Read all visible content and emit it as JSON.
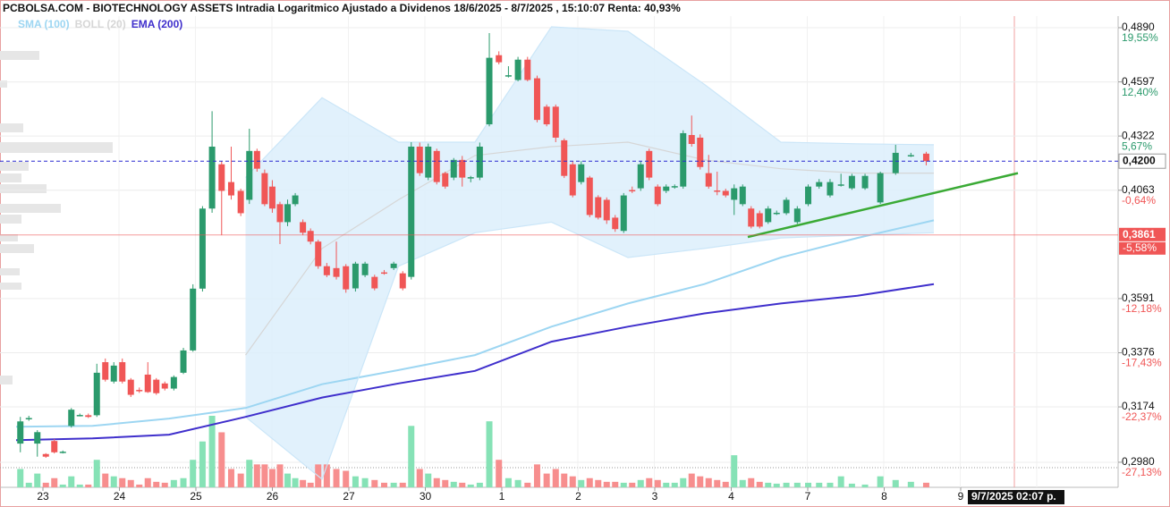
{
  "chart_data": {
    "type": "candlestick",
    "title": "PCBOLSA.COM - BIOTECHNOLOGY ASSETS Intradia Logaritmico Ajustado a Dividenos 18/6/2025 - 8/7/2025 , 15:10:07 Renta: 40,93%",
    "log_scale": true,
    "grid": true,
    "ylim": [
      0.2896,
      0.4955
    ],
    "yticks": [
      {
        "value": 0.489,
        "label": "0,4890"
      },
      {
        "value": 0.4597,
        "label": "0,4597"
      },
      {
        "value": 0.4322,
        "label": "0,4322"
      },
      {
        "value": 0.4063,
        "label": "0,4063"
      },
      {
        "value": 0.3591,
        "label": "0,3591"
      },
      {
        "value": 0.3376,
        "label": "0,3376"
      },
      {
        "value": 0.3174,
        "label": "0,3174"
      },
      {
        "value": 0.298,
        "label": "0,2980"
      }
    ],
    "ytick_changes": [
      {
        "value": 19.55,
        "label": "19,55%"
      },
      {
        "value": 12.4,
        "label": "12,40%"
      },
      {
        "value": 5.67,
        "label": "5,67%"
      },
      {
        "value": -0.64,
        "label": "-0,64%"
      },
      {
        "value": -12.18,
        "label": "-12,18%"
      },
      {
        "value": -17.43,
        "label": "-17,43%"
      },
      {
        "value": -22.37,
        "label": "-22,37%"
      },
      {
        "value": -27.13,
        "label": "-27,13%"
      }
    ],
    "up_color": "#2b9a6c",
    "down_color": "#f05656",
    "up_volume_color": "#86e2b6",
    "down_volume_color": "#f78e8e",
    "days": [
      {
        "label": "23",
        "candles": [
          [
            0.3044,
            0.3138,
            0.3014,
            0.3122
          ],
          [
            0.313,
            0.3142,
            0.3124,
            0.3134
          ],
          [
            0.3044,
            0.3091,
            0.2999,
            0.3084
          ],
          [
            0.3008,
            0.3011,
            0.2995,
            0.2999
          ],
          [
            0.3053,
            0.306,
            0.301,
            0.3014
          ],
          [
            0.3014,
            0.302,
            0.301,
            0.3016
          ],
          [
            0.3106,
            0.317,
            0.31,
            0.3164
          ],
          [
            0.3144,
            0.315,
            0.314,
            0.3145
          ],
          [
            0.3144,
            0.315,
            0.3134,
            0.3138
          ]
        ],
        "volumes": [
          20,
          5,
          15,
          5,
          10,
          3,
          12,
          3,
          3
        ]
      },
      {
        "label": "24",
        "candles": [
          [
            0.3144,
            0.3334,
            0.3138,
            0.33
          ],
          [
            0.334,
            0.3354,
            0.3267,
            0.3274
          ],
          [
            0.3267,
            0.334,
            0.326,
            0.3327
          ],
          [
            0.334,
            0.3354,
            0.326,
            0.3267
          ],
          [
            0.3274,
            0.328,
            0.321,
            0.3218
          ],
          [
            0.3236,
            0.3245,
            0.3225,
            0.3234
          ],
          [
            0.3293,
            0.334,
            0.3225,
            0.3228
          ],
          [
            0.3274,
            0.328,
            0.3218,
            0.3224
          ],
          [
            0.326,
            0.3267,
            0.3234,
            0.3241
          ]
        ],
        "volumes": [
          30,
          15,
          12,
          10,
          8,
          3,
          10,
          6,
          5
        ]
      },
      {
        "label": "25",
        "candles": [
          [
            0.3241,
            0.329,
            0.3234,
            0.3284
          ],
          [
            0.33,
            0.3395,
            0.3295,
            0.3385
          ],
          [
            0.3385,
            0.365,
            0.338,
            0.3632
          ],
          [
            0.3632,
            0.399,
            0.362,
            0.3979
          ],
          [
            0.3979,
            0.4446,
            0.396,
            0.427
          ],
          [
            0.4185,
            0.42,
            0.386,
            0.406
          ],
          [
            0.4101,
            0.427,
            0.402,
            0.4039
          ],
          [
            0.406,
            0.407,
            0.3945,
            0.3958
          ]
        ],
        "volumes": [
          8,
          10,
          30,
          50,
          78,
          60,
          20,
          15
        ]
      },
      {
        "label": "26",
        "candles": [
          [
            0.4019,
            0.4358,
            0.4,
            0.4249
          ],
          [
            0.4249,
            0.426,
            0.415,
            0.4164
          ],
          [
            0.4143,
            0.416,
            0.399,
            0.3999
          ],
          [
            0.408,
            0.411,
            0.396,
            0.3979
          ],
          [
            0.3999,
            0.401,
            0.3821,
            0.3918
          ],
          [
            0.3918,
            0.402,
            0.39,
            0.3999
          ],
          [
            0.3999,
            0.405,
            0.399,
            0.4039
          ],
          [
            0.3918,
            0.393,
            0.386,
            0.3871
          ],
          [
            0.3879,
            0.389,
            0.382,
            0.3832
          ],
          [
            0.3832,
            0.384,
            0.3715,
            0.3726
          ]
        ],
        "volumes": [
          30,
          25,
          25,
          20,
          25,
          15,
          10,
          8,
          5,
          25
        ]
      },
      {
        "label": "27",
        "candles": [
          [
            0.3726,
            0.374,
            0.368,
            0.3688
          ],
          [
            0.3718,
            0.3832,
            0.367,
            0.3681
          ],
          [
            0.3726,
            0.3735,
            0.3615,
            0.3629
          ],
          [
            0.3633,
            0.3745,
            0.362,
            0.3737
          ],
          [
            0.3688,
            0.3745,
            0.368,
            0.3737
          ],
          [
            0.3681,
            0.369,
            0.3625,
            0.3633
          ],
          [
            0.37,
            0.371,
            0.369,
            0.3699
          ],
          [
            0.3718,
            0.3745,
            0.371,
            0.3737
          ]
        ],
        "volumes": [
          25,
          20,
          18,
          12,
          10,
          8,
          5,
          5
        ]
      },
      {
        "label": "30",
        "candles": [
          [
            0.3696,
            0.3705,
            0.3625,
            0.3633
          ],
          [
            0.3681,
            0.4292,
            0.367,
            0.427
          ],
          [
            0.427,
            0.429,
            0.413,
            0.4143
          ],
          [
            0.4122,
            0.4285,
            0.411,
            0.427
          ],
          [
            0.4249,
            0.426,
            0.409,
            0.4101
          ],
          [
            0.4143,
            0.415,
            0.407,
            0.408
          ],
          [
            0.4122,
            0.4215,
            0.411,
            0.4206
          ],
          [
            0.4206,
            0.4225,
            0.408,
            0.4122
          ],
          [
            0.4122,
            0.413,
            0.41,
            0.4124
          ]
        ],
        "volumes": [
          5,
          67,
          20,
          15,
          10,
          8,
          6,
          5,
          3
        ]
      },
      {
        "label": "1",
        "candles": [
          [
            0.4122,
            0.429,
            0.411,
            0.427
          ],
          [
            0.438,
            0.486,
            0.437,
            0.4725
          ],
          [
            0.4739,
            0.476,
            0.469,
            0.4701
          ],
          [
            0.463,
            0.468,
            0.462,
            0.4632
          ],
          [
            0.4607,
            0.473,
            0.46,
            0.4715
          ],
          [
            0.4715,
            0.473,
            0.46,
            0.4607
          ],
          [
            0.4616,
            0.463,
            0.439,
            0.4402
          ],
          [
            0.4469,
            0.448,
            0.437,
            0.438
          ]
        ],
        "volumes": [
          5,
          72,
          30,
          10,
          8,
          5,
          25,
          15
        ]
      },
      {
        "label": "2",
        "candles": [
          [
            0.4469,
            0.448,
            0.4292,
            0.4314
          ],
          [
            0.4301,
            0.431,
            0.412,
            0.413
          ],
          [
            0.4185,
            0.42,
            0.403,
            0.4039
          ],
          [
            0.4101,
            0.42,
            0.409,
            0.4185
          ],
          [
            0.4122,
            0.413,
            0.394,
            0.395
          ],
          [
            0.4031,
            0.404,
            0.393,
            0.3938
          ],
          [
            0.4019,
            0.403,
            0.391,
            0.3926
          ],
          [
            0.3938,
            0.395,
            0.3875,
            0.3887
          ],
          [
            0.3879,
            0.405,
            0.387,
            0.4039
          ]
        ],
        "volumes": [
          20,
          15,
          12,
          8,
          10,
          8,
          6,
          6,
          5
        ]
      },
      {
        "label": "3",
        "candles": [
          [
            0.4064,
            0.408,
            0.405,
            0.4062
          ],
          [
            0.4072,
            0.42,
            0.406,
            0.4185
          ],
          [
            0.4249,
            0.426,
            0.411,
            0.4122
          ],
          [
            0.408,
            0.409,
            0.399,
            0.3999
          ],
          [
            0.406,
            0.409,
            0.405,
            0.408
          ],
          [
            0.408,
            0.409,
            0.407,
            0.4082
          ],
          [
            0.408,
            0.435,
            0.407,
            0.4336
          ],
          [
            0.4327,
            0.4424,
            0.427,
            0.4283
          ],
          [
            0.4314,
            0.433,
            0.416,
            0.4172
          ]
        ],
        "volumes": [
          5,
          8,
          10,
          8,
          5,
          5,
          10,
          15,
          12
        ]
      },
      {
        "label": "4",
        "candles": [
          [
            0.4143,
            0.423,
            0.407,
            0.408
          ],
          [
            0.4062,
            0.415,
            0.404,
            0.4058
          ],
          [
            0.406,
            0.407,
            0.403,
            0.4039
          ],
          [
            0.4019,
            0.409,
            0.395,
            0.4072
          ],
          [
            0.3999,
            0.409,
            0.399,
            0.408
          ],
          [
            0.3979,
            0.399,
            0.389,
            0.3898
          ],
          [
            0.3958,
            0.397,
            0.389,
            0.3898
          ],
          [
            0.3918,
            0.399,
            0.391,
            0.3979
          ],
          [
            0.3958,
            0.397,
            0.395,
            0.396
          ]
        ],
        "volumes": [
          10,
          8,
          6,
          35,
          8,
          10,
          6,
          5,
          4
        ]
      },
      {
        "label": "7",
        "candles": [
          [
            0.3958,
            0.403,
            0.395,
            0.4019
          ],
          [
            0.3918,
            0.399,
            0.391,
            0.3979
          ],
          [
            0.3999,
            0.409,
            0.399,
            0.408
          ],
          [
            0.408,
            0.4115,
            0.407,
            0.4101
          ],
          [
            0.4039,
            0.4115,
            0.403,
            0.4101
          ],
          [
            0.4088,
            0.414,
            0.408,
            0.409
          ],
          [
            0.4072,
            0.414,
            0.4065,
            0.413
          ]
        ],
        "volumes": [
          5,
          5,
          5,
          5,
          5,
          12,
          4
        ]
      },
      {
        "label": "8",
        "candles": [
          [
            0.4072,
            0.414,
            0.4065,
            0.413
          ],
          [
            0.4007,
            0.415,
            0.4,
            0.4143
          ],
          [
            0.4143,
            0.4279,
            0.4135,
            0.424
          ],
          [
            0.4227,
            0.424,
            0.422,
            0.4229
          ],
          [
            0.4236,
            0.4245,
            0.418,
            0.42
          ]
        ],
        "volumes": [
          3,
          12,
          8,
          6,
          5
        ]
      },
      {
        "label": "9",
        "candles": [],
        "volumes": []
      }
    ],
    "series": [
      {
        "name": "SMA (100)",
        "color": "#9dd6f2",
        "values": [
          0.3103,
          0.3106,
          0.3132,
          0.317,
          0.3257,
          0.331,
          0.3367,
          0.3478,
          0.3571,
          0.3651,
          0.3763,
          0.3848,
          0.3926
        ]
      },
      {
        "name": "BOLL (20)",
        "color": "#d6d6d6",
        "fill": "#dceffb",
        "upper": [
          null,
          null,
          null,
          0.4122,
          0.4515,
          0.4292,
          0.4292,
          0.4895,
          0.487,
          0.4584,
          0.4292,
          0.4284,
          0.4279
        ],
        "middle": [
          null,
          null,
          null,
          0.3367,
          0.3802,
          0.4019,
          0.4227,
          0.427,
          0.4292,
          0.4206,
          0.4164,
          0.4143,
          0.4143
        ],
        "lower": [
          null,
          null,
          null,
          0.3138,
          0.2923,
          0.3726,
          0.3871,
          0.3918,
          0.3763,
          0.3802,
          0.3848,
          0.386,
          0.3871
        ]
      },
      {
        "name": "EMA (200)",
        "color": "#3f2fcc",
        "values": [
          0.3056,
          0.3062,
          0.3075,
          0.3138,
          0.3208,
          0.326,
          0.3307,
          0.3419,
          0.3478,
          0.3531,
          0.3571,
          0.3603,
          0.3651
        ]
      }
    ],
    "trendline": {
      "color": "#3aaa35",
      "start": 0.3852,
      "end": 0.4143
    },
    "last_price": {
      "value": 0.42,
      "label": "0,4200",
      "color": "#2b2bd0"
    },
    "reference": {
      "value": 0.3861,
      "label": "0,3861",
      "color": "#f05656",
      "change": {
        "value": -5.58,
        "label": "-5,58%"
      }
    },
    "cursor_label": "9/7/2025 02:07 p."
  }
}
